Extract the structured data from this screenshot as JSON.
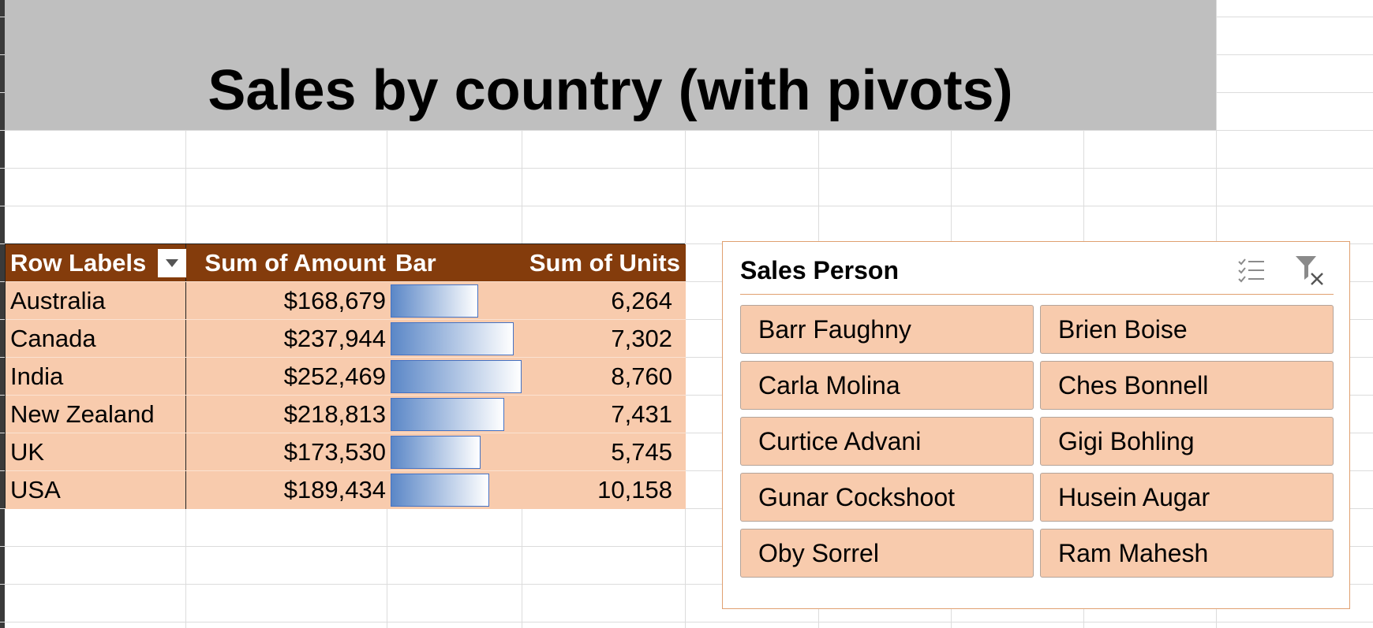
{
  "title": "Sales by country (with pivots)",
  "pivot": {
    "headers": {
      "row_labels": "Row Labels",
      "amount": "Sum of Amount",
      "bar": "Bar",
      "units": "Sum of Units"
    },
    "rows": [
      {
        "label": "Australia",
        "amount": "$168,679",
        "units": "6,264",
        "bar_fraction": 0.668
      },
      {
        "label": "Canada",
        "amount": "$237,944",
        "units": "7,302",
        "bar_fraction": 0.942
      },
      {
        "label": "India",
        "amount": "$252,469",
        "units": "8,760",
        "bar_fraction": 1.0
      },
      {
        "label": "New Zealand",
        "amount": "$218,813",
        "units": "7,431",
        "bar_fraction": 0.867
      },
      {
        "label": "UK",
        "amount": "$173,530",
        "units": "5,745",
        "bar_fraction": 0.687
      },
      {
        "label": "USA",
        "amount": "$189,434",
        "units": "10,158",
        "bar_fraction": 0.75
      }
    ]
  },
  "slicer": {
    "title": "Sales Person",
    "items": [
      "Barr Faughny",
      "Brien Boise",
      "Carla Molina",
      "Ches Bonnell",
      "Curtice Advani",
      "Gigi Bohling",
      "Gunar Cockshoot",
      "Husein Augar",
      "Oby Sorrel",
      "Ram Mahesh"
    ]
  },
  "colors": {
    "header_bg": "#843c0c",
    "row_bg": "#f8cbad",
    "title_band": "#bfbfbf",
    "bar_start": "#5b87c7"
  },
  "icons": [
    "dropdown-arrow-icon",
    "multi-select-icon",
    "clear-filter-icon"
  ]
}
